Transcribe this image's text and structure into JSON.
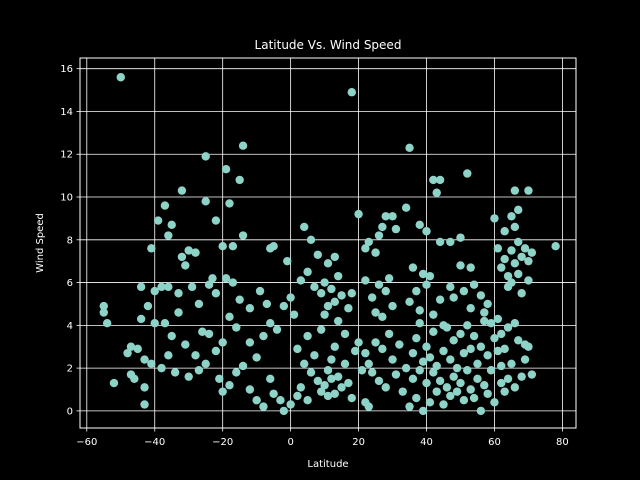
{
  "chart_data": {
    "type": "scatter",
    "title": "Latitude Vs. Wind Speed",
    "xlabel": "Latitude",
    "ylabel": "Wind Speed",
    "xlim": [
      -62,
      84
    ],
    "ylim": [
      -0.8,
      16.5
    ],
    "xticks": [
      -60,
      -40,
      -20,
      0,
      20,
      40,
      60,
      80
    ],
    "yticks": [
      0,
      2,
      4,
      6,
      8,
      10,
      12,
      14,
      16
    ],
    "grid": true,
    "marker_color": "#8dd3c7",
    "axes_color": "#ffffff",
    "background": "#000000",
    "points": [
      [
        -50,
        15.6
      ],
      [
        18,
        14.9
      ],
      [
        35,
        12.3
      ],
      [
        -14,
        12.4
      ],
      [
        -25,
        11.9
      ],
      [
        -19,
        11.3
      ],
      [
        -15,
        10.8
      ],
      [
        -32,
        10.3
      ],
      [
        52,
        11.1
      ],
      [
        44,
        10.8
      ],
      [
        42,
        10.8
      ],
      [
        43,
        10.2
      ],
      [
        66,
        10.3
      ],
      [
        70,
        10.3
      ],
      [
        67,
        9.4
      ],
      [
        65,
        9.1
      ],
      [
        -37,
        9.6
      ],
      [
        -39,
        8.9
      ],
      [
        -35,
        8.7
      ],
      [
        -25,
        9.8
      ],
      [
        -22,
        8.9
      ],
      [
        -18,
        9.7
      ],
      [
        -14,
        8.2
      ],
      [
        -17,
        7.7
      ],
      [
        -20,
        7.7
      ],
      [
        -23,
        6.2
      ],
      [
        -30,
        7.5
      ],
      [
        -28,
        7.4
      ],
      [
        -32,
        7.2
      ],
      [
        -41,
        7.6
      ],
      [
        -36,
        8.2
      ],
      [
        -31,
        6.8
      ],
      [
        -38,
        5.8
      ],
      [
        -40,
        5.6
      ],
      [
        -44,
        5.8
      ],
      [
        -42,
        4.9
      ],
      [
        -36,
        5.8
      ],
      [
        -33,
        5.5
      ],
      [
        -29,
        5.8
      ],
      [
        -27,
        5.0
      ],
      [
        -24,
        5.9
      ],
      [
        -22,
        5.5
      ],
      [
        -19,
        6.2
      ],
      [
        -17,
        6.0
      ],
      [
        -15,
        5.2
      ],
      [
        -12,
        4.8
      ],
      [
        -9,
        5.6
      ],
      [
        -7,
        5.0
      ],
      [
        -55,
        4.9
      ],
      [
        -55,
        4.6
      ],
      [
        -54,
        4.1
      ],
      [
        -44,
        4.3
      ],
      [
        -40,
        4.1
      ],
      [
        -37,
        4.1
      ],
      [
        -35,
        3.5
      ],
      [
        -33,
        4.6
      ],
      [
        -31,
        3.1
      ],
      [
        -28,
        2.6
      ],
      [
        -26,
        3.7
      ],
      [
        -24,
        3.6
      ],
      [
        -22,
        2.8
      ],
      [
        -20,
        3.2
      ],
      [
        -18,
        4.4
      ],
      [
        -16,
        3.9
      ],
      [
        -47,
        3.0
      ],
      [
        -48,
        2.7
      ],
      [
        -45,
        2.9
      ],
      [
        -43,
        2.4
      ],
      [
        -41,
        2.2
      ],
      [
        -38,
        2.0
      ],
      [
        -36,
        2.6
      ],
      [
        -34,
        1.8
      ],
      [
        -47,
        1.7
      ],
      [
        -46,
        1.5
      ],
      [
        -43,
        1.1
      ],
      [
        -43,
        0.3
      ],
      [
        -52,
        1.3
      ],
      [
        -30,
        1.6
      ],
      [
        -27,
        1.9
      ],
      [
        -25,
        2.2
      ],
      [
        -21,
        1.5
      ],
      [
        -20,
        0.9
      ],
      [
        -18,
        1.2
      ],
      [
        -16,
        1.8
      ],
      [
        -14,
        2.1
      ],
      [
        -12,
        1.0
      ],
      [
        -10,
        0.5
      ],
      [
        -8,
        0.2
      ],
      [
        -6,
        1.5
      ],
      [
        -5,
        0.8
      ],
      [
        -3,
        0.5
      ],
      [
        -2,
        0.0
      ],
      [
        0,
        0.3
      ],
      [
        2,
        0.7
      ],
      [
        3,
        1.1
      ],
      [
        5,
        0.5
      ],
      [
        -12,
        3.2
      ],
      [
        -10,
        2.5
      ],
      [
        -8,
        3.5
      ],
      [
        -6,
        4.1
      ],
      [
        -4,
        3.8
      ],
      [
        -2,
        4.9
      ],
      [
        0,
        5.3
      ],
      [
        1,
        4.5
      ],
      [
        -6,
        7.6
      ],
      [
        -5,
        7.7
      ],
      [
        -1,
        7.0
      ],
      [
        4,
        8.6
      ],
      [
        6,
        8.0
      ],
      [
        8,
        7.3
      ],
      [
        11,
        6.9
      ],
      [
        13,
        7.2
      ],
      [
        3,
        6.1
      ],
      [
        5,
        6.5
      ],
      [
        7,
        5.8
      ],
      [
        9,
        5.5
      ],
      [
        10,
        6.0
      ],
      [
        12,
        5.7
      ],
      [
        14,
        6.3
      ],
      [
        15,
        5.4
      ],
      [
        2,
        2.9
      ],
      [
        4,
        2.2
      ],
      [
        5,
        3.5
      ],
      [
        6,
        1.8
      ],
      [
        7,
        2.6
      ],
      [
        8,
        1.4
      ],
      [
        9,
        0.9
      ],
      [
        10,
        1.2
      ],
      [
        11,
        0.7
      ],
      [
        11,
        1.9
      ],
      [
        12,
        1.5
      ],
      [
        12,
        2.4
      ],
      [
        13,
        0.8
      ],
      [
        13,
        3.0
      ],
      [
        14,
        1.6
      ],
      [
        15,
        1.1
      ],
      [
        9,
        3.8
      ],
      [
        10,
        4.5
      ],
      [
        11,
        4.9
      ],
      [
        13,
        5.1
      ],
      [
        14,
        4.2
      ],
      [
        16,
        3.6
      ],
      [
        17,
        4.8
      ],
      [
        18,
        5.5
      ],
      [
        16,
        2.2
      ],
      [
        17,
        1.3
      ],
      [
        18,
        0.6
      ],
      [
        19,
        2.8
      ],
      [
        20,
        3.2
      ],
      [
        21,
        1.9
      ],
      [
        22,
        0.4
      ],
      [
        23,
        0.2
      ],
      [
        20,
        9.2
      ],
      [
        22,
        7.6
      ],
      [
        23,
        7.9
      ],
      [
        25,
        7.4
      ],
      [
        26,
        8.2
      ],
      [
        27,
        8.6
      ],
      [
        28,
        9.1
      ],
      [
        30,
        9.1
      ],
      [
        31,
        8.5
      ],
      [
        34,
        9.5
      ],
      [
        38,
        8.7
      ],
      [
        40,
        8.4
      ],
      [
        44,
        7.9
      ],
      [
        47,
        7.9
      ],
      [
        50,
        8.1
      ],
      [
        53,
        6.7
      ],
      [
        22,
        6.1
      ],
      [
        24,
        5.3
      ],
      [
        25,
        4.6
      ],
      [
        26,
        5.9
      ],
      [
        27,
        4.4
      ],
      [
        28,
        5.6
      ],
      [
        29,
        6.2
      ],
      [
        30,
        4.9
      ],
      [
        22,
        2.7
      ],
      [
        23,
        2.2
      ],
      [
        24,
        1.8
      ],
      [
        25,
        3.2
      ],
      [
        26,
        1.4
      ],
      [
        27,
        2.9
      ],
      [
        28,
        1.1
      ],
      [
        29,
        3.6
      ],
      [
        30,
        2.4
      ],
      [
        31,
        1.7
      ],
      [
        32,
        3.1
      ],
      [
        33,
        0.9
      ],
      [
        34,
        2.0
      ],
      [
        35,
        0.2
      ],
      [
        36,
        1.5
      ],
      [
        36,
        2.7
      ],
      [
        37,
        3.4
      ],
      [
        37,
        0.6
      ],
      [
        38,
        1.9
      ],
      [
        38,
        4.1
      ],
      [
        39,
        2.3
      ],
      [
        39,
        0.0
      ],
      [
        40,
        1.3
      ],
      [
        40,
        3.0
      ],
      [
        41,
        0.4
      ],
      [
        41,
        2.5
      ],
      [
        42,
        1.8
      ],
      [
        42,
        3.7
      ],
      [
        43,
        0.9
      ],
      [
        43,
        2.1
      ],
      [
        44,
        1.4
      ],
      [
        45,
        0.3
      ],
      [
        45,
        2.8
      ],
      [
        46,
        1.1
      ],
      [
        46,
        3.9
      ],
      [
        47,
        0.7
      ],
      [
        47,
        2.4
      ],
      [
        48,
        1.6
      ],
      [
        48,
        3.3
      ],
      [
        49,
        0.9
      ],
      [
        49,
        2.0
      ],
      [
        50,
        1.3
      ],
      [
        50,
        3.6
      ],
      [
        51,
        0.5
      ],
      [
        51,
        2.7
      ],
      [
        52,
        1.9
      ],
      [
        52,
        4.0
      ],
      [
        53,
        1.0
      ],
      [
        53,
        2.9
      ],
      [
        54,
        0.6
      ],
      [
        54,
        3.5
      ],
      [
        55,
        1.5
      ],
      [
        55,
        2.2
      ],
      [
        56,
        0.0
      ],
      [
        56,
        3.0
      ],
      [
        57,
        1.2
      ],
      [
        57,
        4.2
      ],
      [
        58,
        2.6
      ],
      [
        58,
        0.8
      ],
      [
        59,
        1.9
      ],
      [
        60,
        3.4
      ],
      [
        60,
        0.4
      ],
      [
        61,
        2.8
      ],
      [
        62,
        1.3
      ],
      [
        35,
        5.1
      ],
      [
        36,
        6.7
      ],
      [
        37,
        5.6
      ],
      [
        38,
        4.7
      ],
      [
        39,
        6.4
      ],
      [
        40,
        5.9
      ],
      [
        41,
        6.3
      ],
      [
        42,
        4.5
      ],
      [
        44,
        5.2
      ],
      [
        45,
        4.0
      ],
      [
        47,
        5.8
      ],
      [
        48,
        5.3
      ],
      [
        50,
        6.8
      ],
      [
        51,
        5.6
      ],
      [
        53,
        4.8
      ],
      [
        54,
        5.9
      ],
      [
        56,
        5.4
      ],
      [
        57,
        4.6
      ],
      [
        58,
        5.0
      ],
      [
        59,
        4.1
      ],
      [
        60,
        9.0
      ],
      [
        61,
        7.6
      ],
      [
        62,
        6.7
      ],
      [
        63,
        7.1
      ],
      [
        63,
        8.4
      ],
      [
        64,
        5.8
      ],
      [
        64,
        6.3
      ],
      [
        65,
        7.5
      ],
      [
        65,
        6.0
      ],
      [
        66,
        8.6
      ],
      [
        66,
        6.9
      ],
      [
        67,
        7.9
      ],
      [
        67,
        6.4
      ],
      [
        68,
        7.2
      ],
      [
        68,
        5.5
      ],
      [
        69,
        7.6
      ],
      [
        70,
        7.0
      ],
      [
        71,
        7.4
      ],
      [
        70,
        6.1
      ],
      [
        78,
        7.7
      ],
      [
        61,
        4.3
      ],
      [
        62,
        3.6
      ],
      [
        63,
        2.9
      ],
      [
        64,
        3.9
      ],
      [
        65,
        2.2
      ],
      [
        66,
        4.1
      ],
      [
        67,
        3.3
      ],
      [
        68,
        1.6
      ],
      [
        69,
        3.1
      ],
      [
        69,
        2.4
      ],
      [
        70,
        3.0
      ],
      [
        71,
        1.7
      ],
      [
        66,
        1.1
      ],
      [
        63,
        0.9
      ],
      [
        64,
        1.5
      ],
      [
        62,
        2.1
      ]
    ]
  }
}
